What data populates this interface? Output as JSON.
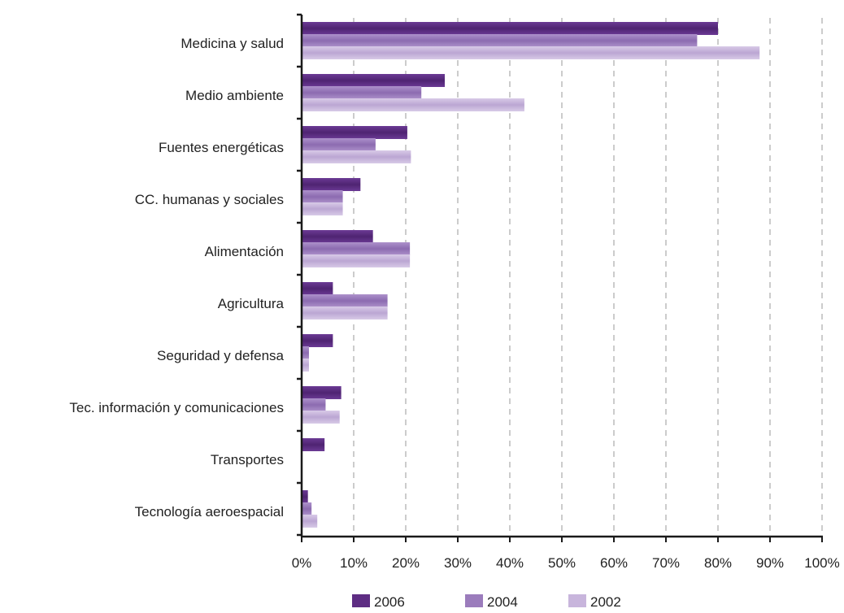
{
  "chart_data": {
    "type": "bar",
    "orientation": "horizontal",
    "categories": [
      "Medicina y salud",
      "Medio ambiente",
      "Fuentes energéticas",
      "CC. humanas y sociales",
      "Alimentación",
      "Agricultura",
      "Seguridad y defensa",
      "Tec. información y comunicaciones",
      "Transportes",
      "Tecnología aeroespacial"
    ],
    "series": [
      {
        "name": "2006",
        "color": "#5e2d83",
        "values": [
          80,
          27.5,
          20.3,
          11.3,
          13.7,
          6,
          6,
          7.6,
          4.4,
          1.2
        ]
      },
      {
        "name": "2004",
        "color": "#9b7cbc",
        "values": [
          76,
          23,
          14.2,
          7.9,
          20.8,
          16.5,
          1.4,
          4.6,
          0,
          1.9
        ]
      },
      {
        "name": "2002",
        "color": "#c8b5dc",
        "values": [
          88,
          42.8,
          21,
          7.9,
          20.8,
          16.5,
          1.4,
          7.3,
          0,
          3
        ]
      }
    ],
    "xlim": [
      0,
      100
    ],
    "xticks": [
      "0%",
      "10%",
      "20%",
      "30%",
      "40%",
      "50%",
      "60%",
      "70%",
      "80%",
      "90%",
      "100%"
    ],
    "grid": "vertical-dashed",
    "legend_position": "bottom",
    "title": "",
    "xlabel": "",
    "ylabel": ""
  }
}
